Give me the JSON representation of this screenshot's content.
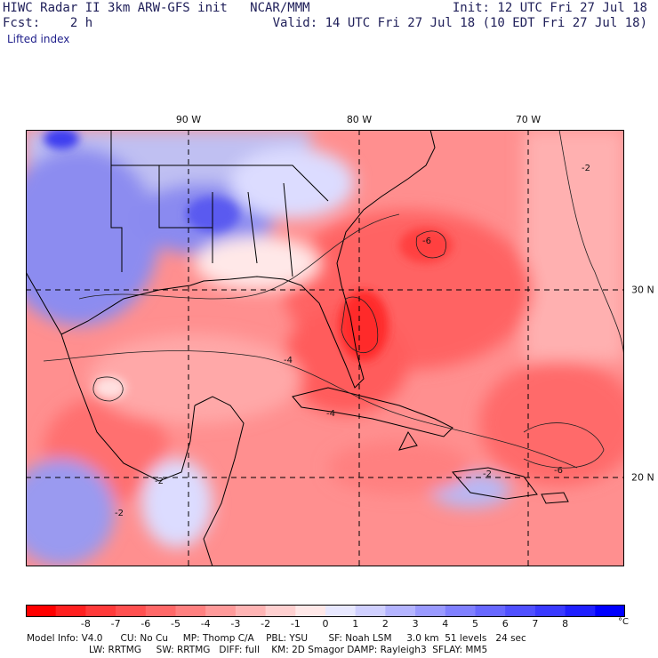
{
  "header": {
    "model_line": "HIWC Radar II 3km ARW-GFS init   NCAR/MMM",
    "fcst_line": "Fcst:    2 h",
    "init_line": "Init: 12 UTC Fri 27 Jul 18",
    "valid_line": "Valid: 14 UTC Fri 27 Jul 18 (10 EDT Fri 27 Jul 18)",
    "field_name": "Lifted index"
  },
  "map": {
    "longitude_labels": [
      "90 W",
      "80 W",
      "70 W"
    ],
    "latitude_labels": [
      "30 N",
      "20 N"
    ],
    "contour_labels": [
      "-2",
      "-4",
      "-6",
      "-2",
      "-4",
      "-6",
      "-2",
      "-2"
    ]
  },
  "colorbar": {
    "ticks": [
      "-8",
      "-7",
      "-6",
      "-5",
      "-4",
      "-3",
      "-2",
      "-1",
      "0",
      "1",
      "2",
      "3",
      "4",
      "5",
      "6",
      "7",
      "8"
    ],
    "unit": "°C",
    "colors": [
      "#ff0000",
      "#ff2020",
      "#ff3a3a",
      "#ff5050",
      "#ff6868",
      "#ff8080",
      "#ff9a9a",
      "#ffb4b4",
      "#ffd0d0",
      "#ffe8e8",
      "#e8e8ff",
      "#d0d0ff",
      "#b4b4ff",
      "#9a9aff",
      "#8080ff",
      "#6868ff",
      "#5050ff",
      "#3a3aff",
      "#2020ff",
      "#0000ff"
    ]
  },
  "footer": {
    "line1": "Model Info: V4.0      CU: No Cu     MP: Thomp C/A    PBL: YSU       SF: Noah LSM     3.0 km  51 levels   24 sec",
    "line2": "LW: RRTMG     SW: RRTMG   DIFF: full    KM: 2D Smagor DAMP: Rayleigh3  SFLAY: MM5"
  },
  "colors": {
    "background": "#ffffff",
    "header_text": "#20205a",
    "map_border": "#000000",
    "coast": "#000000",
    "gridline": "#000000"
  }
}
